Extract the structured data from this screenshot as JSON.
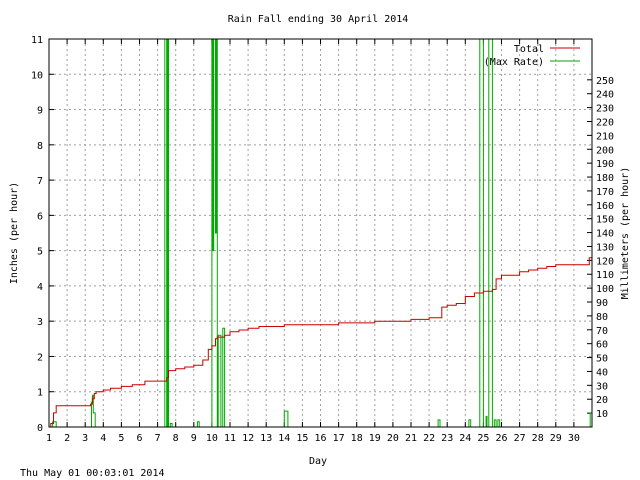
{
  "chart_data": {
    "type": "line",
    "title": "Rain Fall ending 30 April 2014",
    "xlabel": "Day",
    "ylabel": "Inches (per hour)",
    "y2label": "Millimeters (per hour)",
    "footer": "Thu May 01 00:03:01 2014",
    "xlim": [
      1,
      31
    ],
    "ylim": [
      0,
      11
    ],
    "y2lim": [
      0,
      279.4
    ],
    "x_ticks": [
      "1",
      "2",
      "3",
      "4",
      "5",
      "6",
      "7",
      "8",
      "9",
      "10",
      "11",
      "12",
      "13",
      "14",
      "15",
      "16",
      "17",
      "18",
      "19",
      "20",
      "21",
      "22",
      "23",
      "24",
      "25",
      "26",
      "27",
      "28",
      "29",
      "30"
    ],
    "y_ticks": [
      "0",
      "1",
      "2",
      "3",
      "4",
      "5",
      "6",
      "7",
      "8",
      "9",
      "10",
      "11"
    ],
    "y2_ticks": [
      "10",
      "20",
      "30",
      "40",
      "50",
      "60",
      "70",
      "80",
      "90",
      "100",
      "110",
      "120",
      "130",
      "140",
      "150",
      "160",
      "170",
      "180",
      "190",
      "200",
      "210",
      "220",
      "230",
      "240",
      "250"
    ],
    "grid": true,
    "legend_position": "top-right",
    "series": [
      {
        "name": "Total",
        "color": "#cc0000",
        "x": [
          1.0,
          1.1,
          1.25,
          1.4,
          3.3,
          3.4,
          3.5,
          3.6,
          4.0,
          4.4,
          5.0,
          5.6,
          6.3,
          7.0,
          7.5,
          7.6,
          8.0,
          8.5,
          9.0,
          9.5,
          9.8,
          10.0,
          10.2,
          10.3,
          10.7,
          11.0,
          11.5,
          12.0,
          12.6,
          13.4,
          14.0,
          16.0,
          17.0,
          19.0,
          21.0,
          22.0,
          22.5,
          22.7,
          23.0,
          23.5,
          24.0,
          24.5,
          25.0,
          25.5,
          25.7,
          26.0,
          27.0,
          27.5,
          28.0,
          28.5,
          29.0,
          30.0,
          30.7,
          30.85,
          31.0
        ],
        "y": [
          0.0,
          0.1,
          0.4,
          0.6,
          0.65,
          0.8,
          0.95,
          1.0,
          1.05,
          1.1,
          1.15,
          1.2,
          1.3,
          1.3,
          1.4,
          1.6,
          1.65,
          1.7,
          1.75,
          1.9,
          2.2,
          2.3,
          2.5,
          2.55,
          2.6,
          2.7,
          2.75,
          2.8,
          2.85,
          2.85,
          2.9,
          2.9,
          2.95,
          3.0,
          3.05,
          3.1,
          3.1,
          3.4,
          3.45,
          3.5,
          3.7,
          3.8,
          3.85,
          3.9,
          4.2,
          4.3,
          4.4,
          4.45,
          4.5,
          4.55,
          4.6,
          4.6,
          4.6,
          4.8,
          5.1
        ]
      },
      {
        "name": "(Max Rate)",
        "color": "#00aa00",
        "x": [
          1.0,
          1.1,
          1.2,
          1.4,
          3.3,
          3.35,
          3.4,
          3.45,
          3.55,
          7.35,
          7.4,
          7.45,
          7.5,
          7.55,
          7.6,
          7.7,
          7.8,
          9.1,
          9.2,
          9.3,
          9.4,
          9.9,
          10.0,
          10.05,
          10.1,
          10.15,
          10.2,
          10.25,
          10.3,
          10.35,
          10.5,
          10.6,
          10.7,
          10.8,
          13.9,
          14.0,
          14.1,
          14.2,
          22.4,
          22.5,
          22.6,
          24.1,
          24.2,
          24.3,
          24.7,
          24.8,
          24.9,
          25.0,
          25.1,
          25.15,
          25.2,
          25.3,
          25.4,
          25.5,
          25.6,
          25.7,
          25.8,
          25.9,
          30.8,
          30.9,
          31.0
        ],
        "y": [
          0.0,
          0.0,
          0.15,
          0.0,
          0.0,
          0.7,
          0.9,
          0.4,
          0.0,
          0.0,
          11.0,
          11.0,
          0.0,
          11.0,
          0.0,
          0.1,
          0.0,
          0.0,
          0.15,
          0.0,
          0.0,
          0.0,
          11.0,
          5.0,
          11.0,
          11.0,
          5.5,
          11.0,
          0.0,
          2.6,
          0.0,
          2.8,
          0.0,
          0.0,
          0.0,
          0.45,
          0.45,
          0.0,
          0.0,
          0.2,
          0.0,
          0.0,
          0.2,
          0.0,
          0.0,
          11.0,
          11.0,
          0.0,
          0.0,
          0.3,
          0.0,
          11.0,
          11.0,
          0.0,
          0.2,
          0.0,
          0.2,
          0.0,
          0.0,
          0.4,
          0.4
        ]
      }
    ]
  }
}
